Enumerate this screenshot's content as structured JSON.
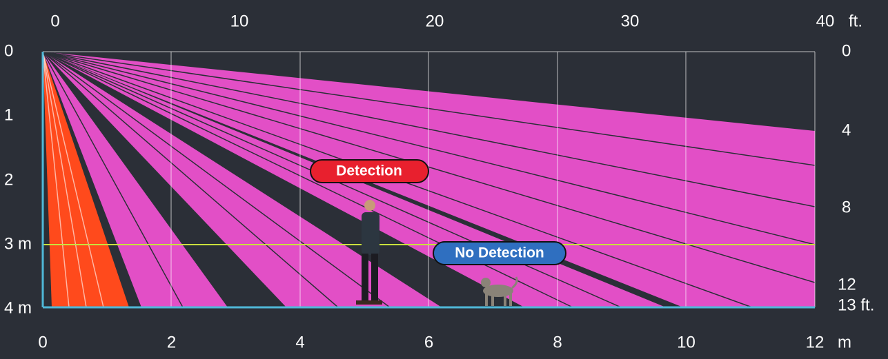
{
  "top_axis": {
    "labels": [
      "0",
      "10",
      "20",
      "30",
      "40"
    ],
    "unit": "ft."
  },
  "bottom_axis": {
    "labels": [
      "0",
      "2",
      "4",
      "6",
      "8",
      "10",
      "12"
    ],
    "unit": "m"
  },
  "left_axis": {
    "labels": [
      "0",
      "1",
      "2",
      "3 m",
      "4 m"
    ]
  },
  "right_axis": {
    "labels": [
      "0",
      "4",
      "8",
      "12",
      "13 ft."
    ]
  },
  "annotations": {
    "detection": "Detection",
    "no_detection": "No Detection"
  }
}
